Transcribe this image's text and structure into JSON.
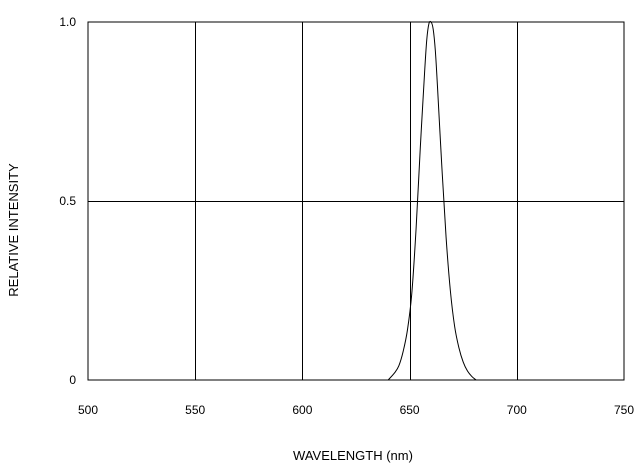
{
  "chart_data": {
    "type": "line",
    "xlabel": "WAVELENGTH (nm)",
    "ylabel": "RELATIVE INTENSITY",
    "xlim": [
      500,
      750
    ],
    "ylim": [
      0,
      1.0
    ],
    "x_ticks": [
      500,
      550,
      600,
      650,
      700,
      750
    ],
    "x_tick_labels": [
      "500",
      "550",
      "600",
      "650",
      "700",
      "750"
    ],
    "y_ticks": [
      0,
      0.5,
      1.0
    ],
    "y_tick_labels": [
      "0",
      "0.5",
      "1.0"
    ],
    "grid": true,
    "series": [
      {
        "x": [
          640,
          643,
          645,
          647,
          649,
          651,
          653,
          655,
          657,
          658,
          659,
          660,
          661,
          662,
          663,
          665,
          667,
          669,
          671,
          673,
          675,
          677,
          679,
          681
        ],
        "y": [
          0.0,
          0.02,
          0.04,
          0.08,
          0.14,
          0.24,
          0.42,
          0.65,
          0.86,
          0.95,
          0.995,
          1.0,
          0.98,
          0.92,
          0.82,
          0.6,
          0.4,
          0.25,
          0.15,
          0.09,
          0.05,
          0.025,
          0.01,
          0.0
        ],
        "color": "#000000"
      }
    ],
    "colors": {
      "grid": "#000000",
      "curve": "#000000",
      "background": "#ffffff"
    }
  }
}
